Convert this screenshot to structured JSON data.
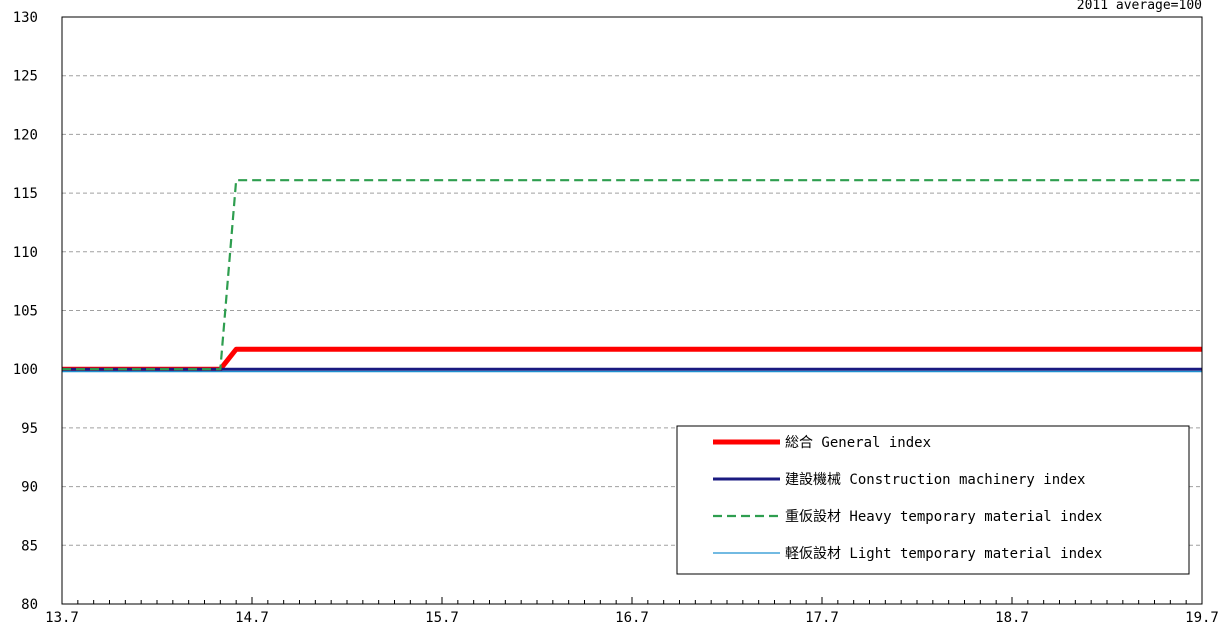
{
  "chart_data": {
    "type": "line",
    "note": "2011 average=100",
    "x_tick_labels": [
      "13.7",
      "14.7",
      "15.7",
      "16.7",
      "17.7",
      "18.7",
      "19.7"
    ],
    "x_range": [
      0,
      72
    ],
    "minor_ticks_per_label": 12,
    "ylim": [
      80,
      130
    ],
    "y_ticks": [
      80,
      85,
      90,
      95,
      100,
      105,
      110,
      115,
      120,
      125,
      130
    ],
    "grid": true,
    "legend_position": "bottom-right",
    "series": [
      {
        "name": "総合 General index",
        "color": "#ff0000",
        "style": "solid-thick",
        "x": [
          0,
          10,
          11,
          72
        ],
        "values": [
          100,
          100,
          101.7,
          101.7
        ]
      },
      {
        "name": "建設機械 Construction machinery index",
        "color": "#1a1a80",
        "style": "solid-medium",
        "x": [
          0,
          72
        ],
        "values": [
          100,
          100
        ]
      },
      {
        "name": "重仮設材 Heavy temporary material index",
        "color": "#2e9e4f",
        "style": "dashed",
        "x": [
          0,
          10,
          11,
          72
        ],
        "values": [
          100,
          100,
          116.1,
          116.1
        ]
      },
      {
        "name": "軽仮設材 Light temporary material index",
        "color": "#1e90d0",
        "style": "solid-thin",
        "x": [
          0,
          72
        ],
        "values": [
          99.8,
          99.8
        ]
      }
    ]
  }
}
